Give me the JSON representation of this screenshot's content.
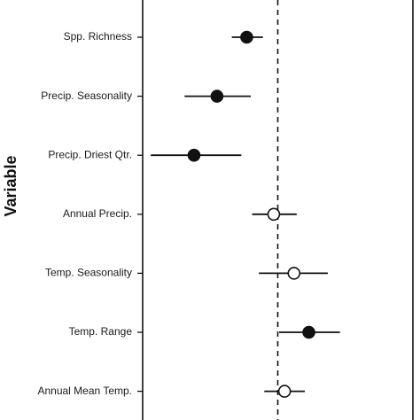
{
  "chart_data": {
    "type": "scatter",
    "ylabel": "Variable",
    "xlabel": "",
    "xlim": [
      -1.0,
      1.0
    ],
    "reference_line": {
      "x": 0.0,
      "style": "dashed"
    },
    "categories": [
      "Spp. Richness",
      "Precip. Seasonality",
      "Precip. Driest Qtr.",
      "Annual Precip.",
      "Temp. Seasonality",
      "Temp. Range",
      "Annual Mean Temp."
    ],
    "points": [
      {
        "label": "Spp. Richness",
        "estimate": -0.23,
        "ci_low": -0.34,
        "ci_high": -0.11,
        "filled": true
      },
      {
        "label": "Precip. Seasonality",
        "estimate": -0.45,
        "ci_low": -0.69,
        "ci_high": -0.2,
        "filled": true
      },
      {
        "label": "Precip. Driest Qtr.",
        "estimate": -0.62,
        "ci_low": -0.94,
        "ci_high": -0.27,
        "filled": true
      },
      {
        "label": "Annual Precip.",
        "estimate": -0.03,
        "ci_low": -0.19,
        "ci_high": 0.14,
        "filled": false
      },
      {
        "label": "Temp. Seasonality",
        "estimate": 0.12,
        "ci_low": -0.14,
        "ci_high": 0.37,
        "filled": false
      },
      {
        "label": "Temp. Range",
        "estimate": 0.23,
        "ci_low": 0.01,
        "ci_high": 0.46,
        "filled": true
      },
      {
        "label": "Annual Mean Temp.",
        "estimate": 0.05,
        "ci_low": -0.1,
        "ci_high": 0.2,
        "filled": false
      }
    ]
  }
}
